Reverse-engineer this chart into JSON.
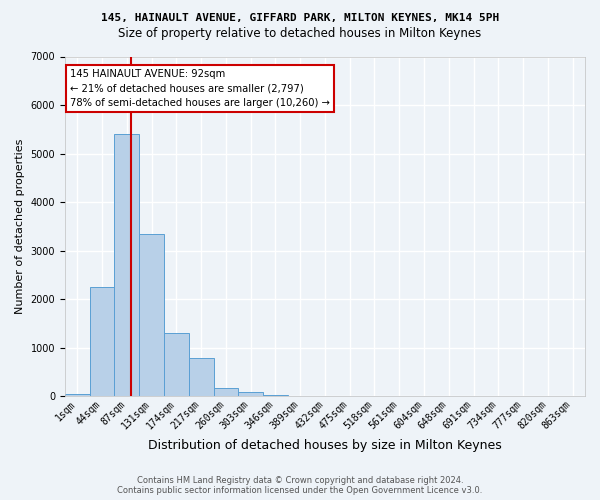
{
  "title1": "145, HAINAULT AVENUE, GIFFARD PARK, MILTON KEYNES, MK14 5PH",
  "title2": "Size of property relative to detached houses in Milton Keynes",
  "xlabel": "Distribution of detached houses by size in Milton Keynes",
  "ylabel": "Number of detached properties",
  "footer1": "Contains HM Land Registry data © Crown copyright and database right 2024.",
  "footer2": "Contains public sector information licensed under the Open Government Licence v3.0.",
  "annotation_title": "145 HAINAULT AVENUE: 92sqm",
  "annotation_line1": "← 21% of detached houses are smaller (2,797)",
  "annotation_line2": "78% of semi-detached houses are larger (10,260) →",
  "bar_color": "#b8d0e8",
  "bar_edge_color": "#5a9fd4",
  "vline_color": "#cc0000",
  "vline_category_index": 2,
  "categories": [
    "1sqm",
    "44sqm",
    "87sqm",
    "131sqm",
    "174sqm",
    "217sqm",
    "260sqm",
    "303sqm",
    "346sqm",
    "389sqm",
    "432sqm",
    "475sqm",
    "518sqm",
    "561sqm",
    "604sqm",
    "648sqm",
    "691sqm",
    "734sqm",
    "777sqm",
    "820sqm",
    "863sqm"
  ],
  "values": [
    50,
    2250,
    5400,
    3350,
    1300,
    800,
    170,
    100,
    35,
    5,
    2,
    1,
    0,
    0,
    0,
    0,
    0,
    0,
    0,
    0,
    0
  ],
  "ylim": [
    0,
    7000
  ],
  "yticks": [
    0,
    1000,
    2000,
    3000,
    4000,
    5000,
    6000,
    7000
  ],
  "annotation_box_color": "#ffffff",
  "annotation_box_edge": "#cc0000",
  "bg_color": "#eef3f8",
  "grid_color": "#ffffff",
  "title1_fontsize": 8.0,
  "title2_fontsize": 8.5,
  "ylabel_fontsize": 8,
  "xlabel_fontsize": 9,
  "tick_fontsize": 7,
  "annotation_fontsize": 7.2,
  "footer_fontsize": 6.0
}
